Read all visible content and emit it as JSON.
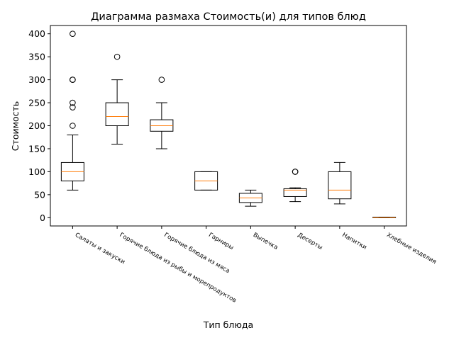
{
  "chart_data": {
    "type": "box",
    "title": "Диаграмма размаха Стоимость(и) для типов блюд",
    "xlabel": "Тип блюда",
    "ylabel": "Стоимость",
    "ylim": [
      -18,
      418
    ],
    "yticks": [
      0,
      50,
      100,
      150,
      200,
      250,
      300,
      350,
      400
    ],
    "grid": false,
    "colors": {
      "box": "#000000",
      "median": "#ff7f0e",
      "flier": "#000000"
    },
    "categories": [
      "Салаты и закуски",
      "Горячие блюда из рыбы и морепродуктов",
      "Горячие блюда из мяса",
      "Гарниры",
      "Выпечка",
      "Десерты",
      "Напитки",
      "Хлебные изделия"
    ],
    "boxes": [
      {
        "whisker_low": 60,
        "q1": 80,
        "median": 100,
        "q3": 120,
        "whisker_high": 180,
        "fliers": [
          200,
          240,
          250,
          300,
          300,
          400
        ]
      },
      {
        "whisker_low": 160,
        "q1": 200,
        "median": 220,
        "q3": 250,
        "whisker_high": 300,
        "fliers": [
          350
        ]
      },
      {
        "whisker_low": 150,
        "q1": 188,
        "median": 200,
        "q3": 213,
        "whisker_high": 250,
        "fliers": [
          300
        ]
      },
      {
        "whisker_low": 60,
        "q1": 60,
        "median": 80,
        "q3": 100,
        "whisker_high": 100,
        "fliers": []
      },
      {
        "whisker_low": 25,
        "q1": 33,
        "median": 43,
        "q3": 53,
        "whisker_high": 60,
        "fliers": []
      },
      {
        "whisker_low": 35,
        "q1": 46,
        "median": 60,
        "q3": 63,
        "whisker_high": 65,
        "fliers": [
          100,
          100
        ]
      },
      {
        "whisker_low": 30,
        "q1": 41,
        "median": 60,
        "q3": 100,
        "whisker_high": 120,
        "fliers": []
      },
      {
        "whisker_low": 0,
        "q1": 0,
        "median": 0,
        "q3": 1,
        "whisker_high": 1,
        "fliers": []
      }
    ]
  }
}
